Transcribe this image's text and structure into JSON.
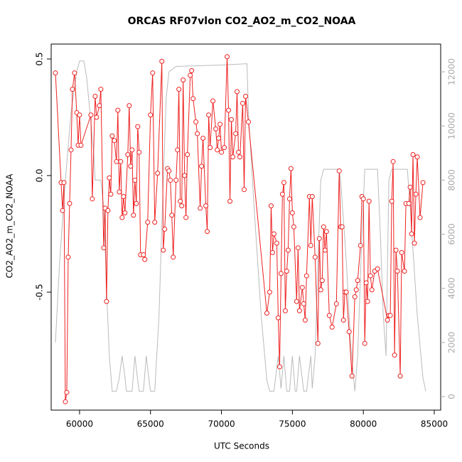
{
  "chart_data": {
    "type": "line",
    "title": "ORCAS RF07vlon CO2_AO2_m_CO2_NOAA",
    "x_label": "UTC Seconds",
    "y_label": "CO2_AO2_m_CO2_NOAA",
    "xlim": [
      58000,
      85450
    ],
    "xticks": [
      60000,
      65000,
      70000,
      75000,
      80000,
      85000
    ],
    "ylim": [
      -1.006,
      0.564
    ],
    "yticks": [
      -0.5,
      {
        "value": 0,
        "label": "0.0"
      },
      0.5
    ],
    "y2lim": [
      -500,
      13025
    ],
    "y2ticks": [
      0,
      2000,
      4000,
      6000,
      8000,
      10000,
      12000
    ],
    "y2tick_color": "#aaaaaa",
    "series": [
      {
        "color": "#bbbbbb",
        "axis": "y2",
        "markers": false,
        "x": [
          58300,
          58600,
          59000,
          59400,
          59800,
          60000,
          60300,
          60500,
          61000,
          61100,
          61500,
          61700,
          61900,
          62100,
          62300,
          62600,
          62800,
          63000,
          63200,
          63300,
          63700,
          63900,
          64100,
          64200,
          64500,
          64700,
          64900,
          65000,
          65300,
          65600,
          65900,
          66100,
          66300,
          66800,
          70000,
          71800,
          71900,
          72300,
          72800,
          73200,
          73400,
          73700,
          74000,
          74200,
          74400,
          74600,
          74800,
          75000,
          75200,
          75300,
          75500,
          75800,
          76000,
          76300,
          76400,
          76600,
          76800,
          77000,
          77200,
          78300,
          78400,
          78800,
          79100,
          79400,
          79600,
          79700,
          79900,
          80100,
          81000,
          81200,
          81400,
          81600,
          81800,
          82000,
          83100,
          83300,
          83800,
          84200,
          84400
        ],
        "values": [
          2000,
          5000,
          8000,
          10500,
          12000,
          12400,
          12400,
          11800,
          9000,
          8000,
          8000,
          7000,
          4000,
          1500,
          200,
          200,
          700,
          1500,
          700,
          200,
          200,
          1500,
          600,
          200,
          200,
          1500,
          600,
          200,
          200,
          3000,
          8000,
          11000,
          12000,
          12200,
          12250,
          12300,
          10500,
          7000,
          3000,
          600,
          200,
          200,
          1500,
          300,
          1500,
          200,
          200,
          1500,
          200,
          200,
          1500,
          200,
          200,
          1500,
          300,
          1500,
          5000,
          8000,
          8400,
          8400,
          8000,
          5000,
          2000,
          200,
          1500,
          3000,
          6000,
          8400,
          8400,
          6000,
          3000,
          1500,
          8000,
          8400,
          8400,
          7000,
          3000,
          700,
          200
        ]
      },
      {
        "color": "#ee2222",
        "markers": true,
        "x": [
          58300,
          58700,
          58800,
          58900,
          59000,
          59100,
          59200,
          59300,
          59400,
          59500,
          59650,
          59800,
          59900,
          60000,
          60100,
          60800,
          60900,
          61100,
          61200,
          61400,
          61500,
          61700,
          61800,
          61900,
          62000,
          62100,
          62200,
          62300,
          62450,
          62600,
          62700,
          62800,
          62900,
          63000,
          63100,
          63200,
          63400,
          63500,
          63600,
          63700,
          63800,
          63900,
          64000,
          64100,
          64200,
          64300,
          64500,
          64600,
          64800,
          65000,
          65150,
          65300,
          65500,
          65800,
          65900,
          66000,
          66200,
          66300,
          66400,
          66500,
          66600,
          66800,
          66900,
          67000,
          67100,
          67200,
          67300,
          67400,
          67500,
          67600,
          67800,
          67900,
          68000,
          68200,
          68300,
          68500,
          68600,
          68700,
          68900,
          69000,
          69100,
          69200,
          69400,
          69600,
          69700,
          69800,
          69900,
          70000,
          70200,
          70400,
          70500,
          70600,
          70700,
          70800,
          71000,
          71100,
          71200,
          71300,
          71500,
          71600,
          71700,
          71900,
          73200,
          73400,
          73500,
          73600,
          73700,
          73900,
          74000,
          74100,
          74200,
          74300,
          74400,
          74500,
          74600,
          74700,
          74800,
          74900,
          75000,
          75100,
          75300,
          75400,
          75500,
          75700,
          75800,
          75900,
          76000,
          76200,
          76300,
          76400,
          76600,
          76800,
          76900,
          77000,
          77100,
          77200,
          77300,
          77400,
          77600,
          77800,
          78100,
          78300,
          78400,
          78500,
          78600,
          78700,
          78800,
          79000,
          79200,
          79400,
          79500,
          79600,
          79800,
          79900,
          80000,
          80100,
          80200,
          80300,
          80400,
          80500,
          80600,
          80800,
          81000,
          81700,
          81800,
          81900,
          82000,
          82100,
          82200,
          82300,
          82400,
          82600,
          82700,
          82900,
          83000,
          83200,
          83300,
          83400,
          83500,
          83600,
          83700,
          83800,
          84000,
          84200
        ],
        "values": [
          0.44,
          -0.03,
          -0.15,
          -0.03,
          -0.97,
          -0.93,
          -0.35,
          -0.12,
          0.11,
          0.37,
          0.44,
          0.27,
          0.13,
          0.26,
          0.13,
          0.26,
          -0.1,
          0.34,
          0.25,
          0.3,
          0.37,
          -0.31,
          -0.14,
          -0.54,
          -0.15,
          -0.01,
          -0.08,
          0.17,
          0.15,
          0.06,
          0.28,
          -0.07,
          0.06,
          -0.18,
          -0.09,
          -0.16,
          0.09,
          0.3,
          0.04,
          0.11,
          -0.17,
          -0.02,
          -0.12,
          0.21,
          0.1,
          -0.34,
          -0.34,
          -0.36,
          -0.2,
          0.26,
          0.44,
          -0.2,
          0.01,
          0.49,
          -0.32,
          -0.23,
          0.03,
          0.02,
          -0.02,
          -0.17,
          -0.35,
          -0.02,
          0.11,
          0.37,
          -0.11,
          -0.13,
          0.41,
          0.0,
          -0.18,
          0.09,
          0.43,
          0.45,
          0.33,
          0.23,
          0.18,
          -0.14,
          0.04,
          0.16,
          -0.13,
          -0.24,
          0.26,
          0.12,
          0.32,
          0.2,
          0.11,
          0.16,
          0.22,
          0.1,
          0.12,
          0.51,
          0.28,
          -0.11,
          0.24,
          0.08,
          0.18,
          0.36,
          0.1,
          0.08,
          0.31,
          -0.06,
          0.34,
          0.23,
          -0.59,
          -0.5,
          -0.13,
          -0.33,
          -0.25,
          -0.29,
          -0.61,
          -0.82,
          -0.42,
          -0.08,
          -0.03,
          -0.58,
          -0.41,
          -0.32,
          -0.1,
          0.03,
          -0.16,
          -0.22,
          -0.54,
          -0.31,
          -0.58,
          -0.48,
          -0.55,
          -0.62,
          -0.43,
          -0.09,
          -0.3,
          -0.09,
          -0.35,
          -0.72,
          -0.27,
          -0.49,
          -0.45,
          -0.22,
          -0.32,
          -0.24,
          -0.6,
          -0.65,
          -0.55,
          0.02,
          -0.22,
          -0.22,
          -0.62,
          -0.5,
          -0.5,
          -0.67,
          -0.86,
          -0.52,
          -0.49,
          -0.45,
          -0.3,
          -0.09,
          -0.1,
          -0.72,
          -0.46,
          -0.54,
          -0.11,
          -0.43,
          -0.49,
          -0.41,
          -0.4,
          -0.62,
          -0.6,
          -0.6,
          -0.11,
          0.06,
          -0.77,
          -0.32,
          -0.41,
          -0.86,
          -0.33,
          -0.41,
          -0.12,
          -0.12,
          -0.05,
          -0.25,
          0.09,
          -0.29,
          -0.08,
          0.08,
          -0.18,
          -0.03
        ]
      }
    ]
  }
}
